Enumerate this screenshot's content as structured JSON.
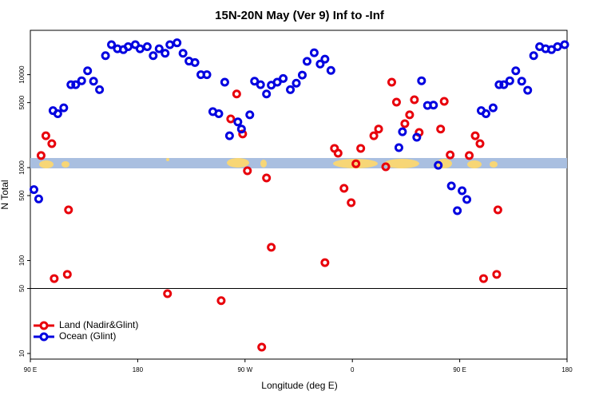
{
  "chart_data": {
    "type": "scatter",
    "title": "15N-20N May (Ver 9)   Inf to -Inf",
    "x_label": "Longitude (deg E)",
    "y_label": "N Total",
    "log_y": true,
    "xlim": [
      90,
      540
    ],
    "ylim": [
      8.7,
      30000
    ],
    "xticks": [
      {
        "value": 90,
        "label": "90 E"
      },
      180,
      {
        "value": 270,
        "label": "90 W"
      },
      {
        "value": 360,
        "label": "0"
      },
      {
        "value": 450,
        "label": "90 E"
      },
      {
        "value": 540,
        "label": "180"
      }
    ],
    "yticks": [
      10,
      50,
      100,
      500,
      1000,
      5000,
      10000
    ],
    "reference_line": 50,
    "legend": "bottom-left",
    "series": [
      {
        "name": "Land (Nadir&Glint)",
        "color": "#e8000b",
        "x": [
          99,
          103,
          108,
          110,
          121,
          122,
          205,
          250,
          258,
          263,
          268,
          272,
          284,
          288,
          292,
          337,
          345,
          348,
          353,
          359,
          363,
          367,
          378,
          382,
          388,
          393,
          397,
          404,
          408,
          412,
          416,
          434,
          437,
          442,
          458,
          463,
          467,
          470,
          481,
          482
        ],
        "values": [
          1350,
          2200,
          1810,
          64,
          71,
          351,
          44,
          37,
          3340,
          6200,
          2300,
          925,
          11.7,
          774,
          139,
          95,
          1610,
          1430,
          598,
          419,
          1100,
          1610,
          2200,
          2600,
          1020,
          8300,
          5060,
          2970,
          3700,
          5370,
          2390,
          2600,
          5160,
          1370,
          1350,
          2200,
          1810,
          64,
          71,
          351
        ]
      },
      {
        "name": "Ocean (Glint)",
        "color": "#0000e0",
        "x": [
          93,
          97,
          109,
          113,
          118,
          124,
          128,
          133,
          138,
          143,
          148,
          153,
          158,
          163,
          168,
          172,
          178,
          182,
          188,
          193,
          198,
          203,
          207,
          213,
          218,
          223,
          228,
          233,
          238,
          243,
          248,
          253,
          257,
          264,
          267,
          274,
          278,
          283,
          288,
          292,
          297,
          302,
          308,
          313,
          318,
          322,
          328,
          333,
          337,
          342,
          399,
          402,
          418,
          414,
          423,
          428,
          432,
          443,
          448,
          452,
          456,
          468,
          472,
          478,
          483,
          487,
          492,
          497,
          502,
          507,
          512,
          517,
          522,
          527,
          532,
          538
        ],
        "values": [
          580,
          460,
          4100,
          3800,
          4400,
          7800,
          7800,
          8600,
          11000,
          8500,
          6900,
          16000,
          21000,
          19000,
          18600,
          20000,
          21000,
          19000,
          20000,
          16000,
          19000,
          17000,
          21000,
          22000,
          17000,
          14000,
          13500,
          10000,
          10000,
          4000,
          3800,
          8300,
          2200,
          3100,
          2600,
          3700,
          8500,
          7800,
          6200,
          7700,
          8300,
          9100,
          6900,
          8100,
          9900,
          13900,
          17200,
          13000,
          14700,
          11100,
          1640,
          2430,
          8600,
          2120,
          4670,
          4700,
          1060,
          635,
          344,
          564,
          454,
          4100,
          3800,
          4400,
          7800,
          7800,
          8600,
          11000,
          8500,
          6800,
          16000,
          20000,
          19000,
          18600,
          20000,
          21000
        ]
      }
    ]
  }
}
